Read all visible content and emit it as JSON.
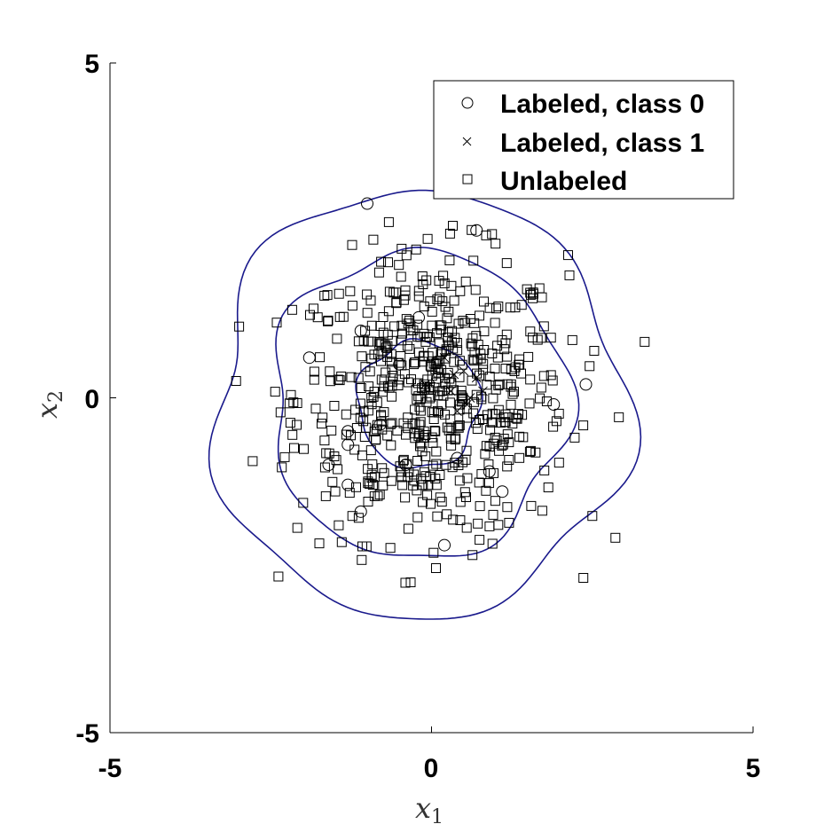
{
  "chart_data": {
    "type": "scatter",
    "title": "",
    "xlabel": {
      "main": "x",
      "sub": "1"
    },
    "ylabel": {
      "main": "x",
      "sub": "2"
    },
    "xlim": [
      -5,
      5
    ],
    "ylim": [
      -5,
      5
    ],
    "xticks": [
      "-5",
      "0",
      "5"
    ],
    "yticks": [
      "-5",
      "0",
      "5"
    ],
    "grid": false,
    "legend_position": "top-right",
    "colors": {
      "markers": "#000000",
      "contour": "#1a1a8c"
    },
    "series": [
      {
        "name": "Labeled, class 0",
        "marker": "circle",
        "points": [
          [
            -1.0,
            2.9
          ],
          [
            0.7,
            2.5
          ],
          [
            -1.9,
            0.6
          ],
          [
            -1.3,
            -0.5
          ],
          [
            -0.8,
            -0.4
          ],
          [
            -1.6,
            -1.0
          ],
          [
            -1.3,
            -0.7
          ],
          [
            -1.3,
            -1.3
          ],
          [
            -1.1,
            -1.7
          ],
          [
            0.2,
            -2.2
          ],
          [
            0.9,
            -1.1
          ],
          [
            1.1,
            -1.4
          ],
          [
            1.9,
            -0.1
          ],
          [
            2.4,
            0.2
          ],
          [
            -0.2,
            1.2
          ],
          [
            0.1,
            0.3
          ],
          [
            -0.5,
            0.5
          ],
          [
            0.4,
            -0.9
          ],
          [
            -0.4,
            -1.0
          ],
          [
            -1.1,
            1.0
          ]
        ]
      },
      {
        "name": "Labeled, class 1",
        "marker": "x",
        "points": [
          [
            0.5,
            0.4
          ],
          [
            0.3,
            0.1
          ],
          [
            0.6,
            0.0
          ],
          [
            0.2,
            0.6
          ],
          [
            0.4,
            -0.2
          ],
          [
            0.7,
            0.3
          ],
          [
            -0.1,
            0.2
          ],
          [
            0.8,
            0.1
          ],
          [
            0.35,
            0.35
          ],
          [
            0.55,
            -0.1
          ]
        ]
      },
      {
        "name": "Unlabeled",
        "marker": "square",
        "count": 600,
        "distribution": {
          "mean": [
            0,
            0
          ],
          "std": [
            1.05,
            1.05
          ]
        }
      }
    ],
    "contours": {
      "levels": [
        1,
        2,
        3
      ],
      "center": [
        -0.2,
        -0.1
      ],
      "radii": [
        0.95,
        2.3,
        3.2
      ]
    }
  }
}
